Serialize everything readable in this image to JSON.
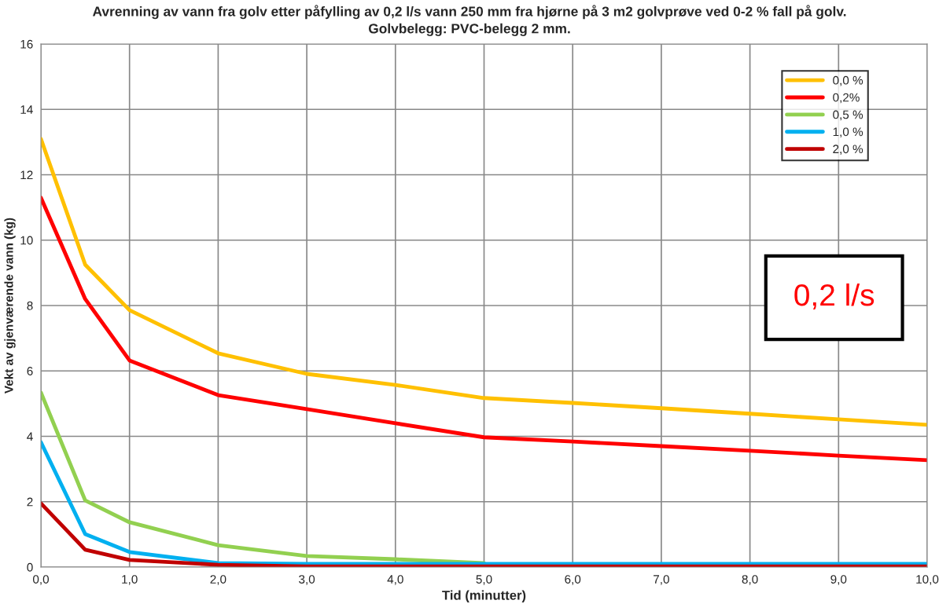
{
  "chart_data": {
    "type": "line",
    "title": "Avrenning av vann fra golv etter påfylling av 0,2 l/s vann 250 mm fra hjørne på 3 m2 golvprøve ved 0-2 % fall på golv.",
    "subtitle": "Golvbelegg: PVC-belegg 2 mm.",
    "xlabel": "Tid (minutter)",
    "ylabel": "Vekt av gjenværende vann (kg)",
    "x": [
      0,
      0.5,
      1,
      2,
      3,
      4,
      5,
      6,
      7,
      8,
      9,
      10
    ],
    "series": [
      {
        "name": "0,0 %",
        "color": "#ffc000",
        "values": [
          13.1,
          9.25,
          7.86,
          6.54,
          5.91,
          5.57,
          5.17,
          5.02,
          4.86,
          4.69,
          4.52,
          4.35
        ]
      },
      {
        "name": "0,2%",
        "color": "#ff0000",
        "values": [
          11.3,
          8.2,
          6.32,
          5.26,
          4.83,
          4.4,
          3.97,
          3.84,
          3.7,
          3.56,
          3.41,
          3.27
        ]
      },
      {
        "name": "0,5 %",
        "color": "#92d050",
        "values": [
          5.34,
          2.04,
          1.37,
          0.67,
          0.34,
          0.24,
          0.12,
          null,
          null,
          null,
          null,
          null
        ]
      },
      {
        "name": "1,0 %",
        "color": "#00b0f0",
        "values": [
          3.82,
          1.01,
          0.46,
          0.12,
          0.1,
          0.1,
          0.1,
          0.1,
          0.1,
          0.1,
          0.1,
          0.1
        ]
      },
      {
        "name": "2,0 %",
        "color": "#c00000",
        "values": [
          1.95,
          0.53,
          0.22,
          0.07,
          0.02,
          0.02,
          0.02,
          0.02,
          0.02,
          0.02,
          0.02,
          0.02
        ]
      }
    ],
    "xlim": [
      0,
      10
    ],
    "ylim": [
      0,
      16
    ],
    "xticks": [
      {
        "value": 0,
        "label": "0,0"
      },
      {
        "value": 1,
        "label": "1,0"
      },
      {
        "value": 2,
        "label": "2,0"
      },
      {
        "value": 3,
        "label": "3,0"
      },
      {
        "value": 4,
        "label": "4,0"
      },
      {
        "value": 5,
        "label": "5,0"
      },
      {
        "value": 6,
        "label": "6,0"
      },
      {
        "value": 7,
        "label": "7,0"
      },
      {
        "value": 8,
        "label": "8,0"
      },
      {
        "value": 9,
        "label": "9,0"
      },
      {
        "value": 10,
        "label": "10,0"
      }
    ],
    "yticks": [
      0,
      2,
      4,
      6,
      8,
      10,
      12,
      14,
      16
    ],
    "annotations": [
      "0,2 l/s"
    ],
    "grid": true,
    "legend": "top right",
    "line_style": "solid",
    "marker": "none"
  }
}
